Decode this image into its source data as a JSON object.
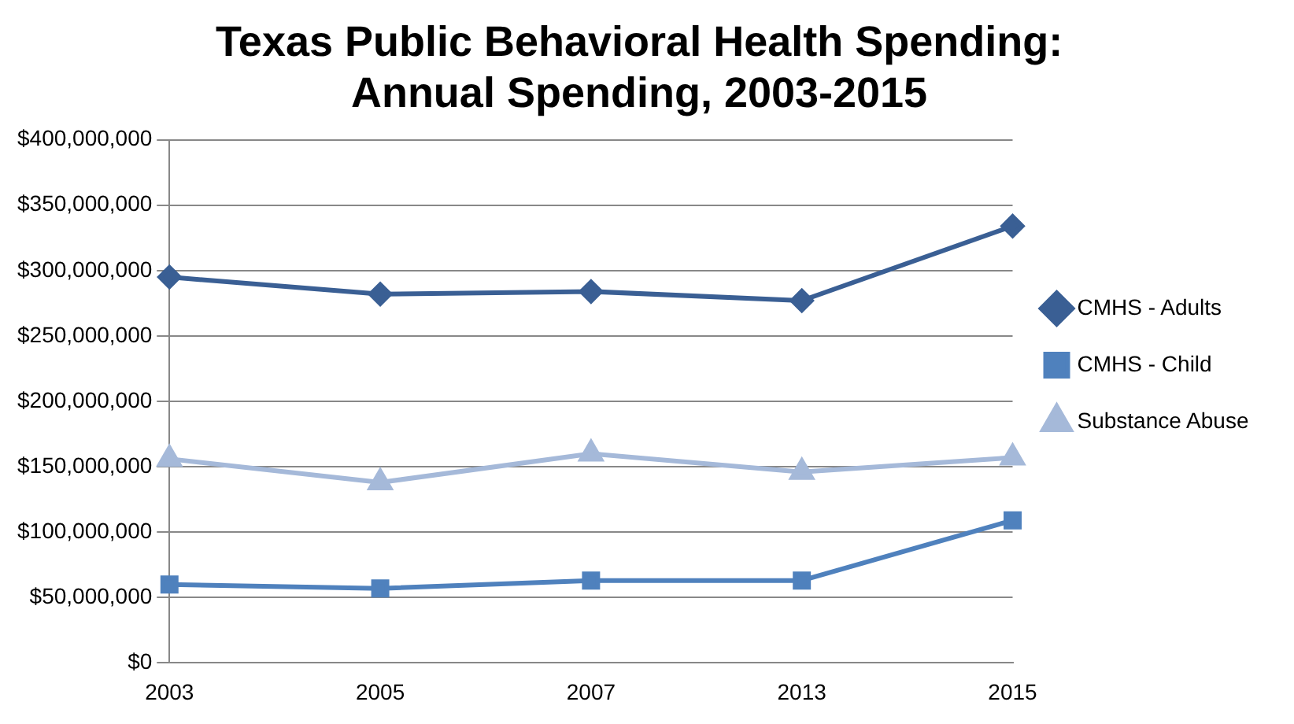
{
  "chart_data": {
    "type": "line",
    "title": [
      "Texas Public Behavioral Health Spending:",
      "Annual Spending, 2003-2015"
    ],
    "categories": [
      "2003",
      "2005",
      "2007",
      "2013",
      "2015"
    ],
    "series": [
      {
        "name": "CMHS - Adults",
        "color": "#3a5f94",
        "marker": "diamond",
        "values": [
          295000000,
          282000000,
          284000000,
          277000000,
          334000000
        ]
      },
      {
        "name": "CMHS - Child",
        "color": "#4f81bd",
        "marker": "square",
        "values": [
          60000000,
          57000000,
          63000000,
          63000000,
          109000000
        ]
      },
      {
        "name": "Substance Abuse",
        "color": "#a5b9d9",
        "marker": "triangle",
        "values": [
          156000000,
          138000000,
          160000000,
          146000000,
          157000000
        ]
      }
    ],
    "ylim": [
      0,
      400000000
    ],
    "yticks": [
      {
        "value": 0,
        "label": "$0"
      },
      {
        "value": 50000000,
        "label": "$50,000,000"
      },
      {
        "value": 100000000,
        "label": "$100,000,000"
      },
      {
        "value": 150000000,
        "label": "$150,000,000"
      },
      {
        "value": 200000000,
        "label": "$200,000,000"
      },
      {
        "value": 250000000,
        "label": "$250,000,000"
      },
      {
        "value": 300000000,
        "label": "$300,000,000"
      },
      {
        "value": 350000000,
        "label": "$350,000,000"
      },
      {
        "value": 400000000,
        "label": "$400,000,000"
      }
    ],
    "grid": "y",
    "legend": "right",
    "line_style": "solid"
  }
}
